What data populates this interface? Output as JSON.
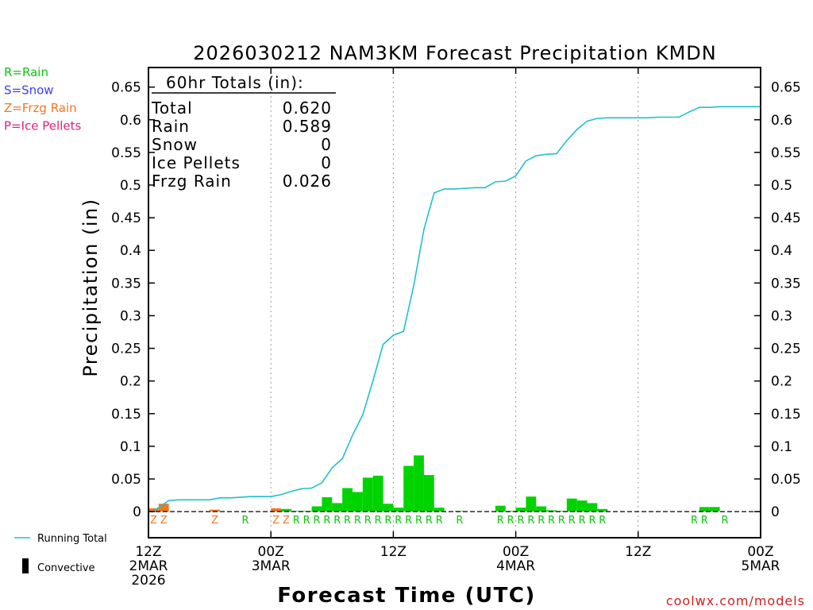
{
  "chart_data": {
    "type": "bar",
    "title": "2026030212 NAM3KM Forecast Precipitation KMDN",
    "xlabel": "Forecast Time (UTC)",
    "ylabel": "Precipitation (in)",
    "ylim": [
      -0.04,
      0.68
    ],
    "xlim": [
      0,
      60
    ],
    "yticks": [
      0,
      0.05,
      0.1,
      0.15,
      0.2,
      0.25,
      0.3,
      0.35,
      0.4,
      0.45,
      0.5,
      0.55,
      0.6,
      0.65
    ],
    "ytick_labels": [
      "0",
      "0.05",
      "0.1",
      "0.15",
      "0.2",
      "0.25",
      "0.3",
      "0.35",
      "0.4",
      "0.45",
      "0.5",
      "0.55",
      "0.6",
      "0.65"
    ],
    "xticks": [
      {
        "hour": 0,
        "lines": [
          "12Z",
          "2MAR",
          "2026"
        ]
      },
      {
        "hour": 12,
        "lines": [
          "00Z",
          "3MAR"
        ]
      },
      {
        "hour": 24,
        "lines": [
          "12Z"
        ]
      },
      {
        "hour": 36,
        "lines": [
          "00Z",
          "4MAR"
        ]
      },
      {
        "hour": 48,
        "lines": [
          "12Z"
        ]
      },
      {
        "hour": 60,
        "lines": [
          "00Z",
          "5MAR"
        ]
      }
    ],
    "colors": {
      "rain": "#00d400",
      "frzg": "#f07820",
      "snow": "#3c3cff",
      "ice": "#e0207a",
      "running": "#20c0c8"
    },
    "legend": [
      {
        "text": "R=Rain",
        "color": "#10c410"
      },
      {
        "text": "S=Snow",
        "color": "#3c3cff"
      },
      {
        "text": "Z=Frzg Rain",
        "color": "#f07820"
      },
      {
        "text": "P=Ice Pellets",
        "color": "#e0207a"
      }
    ],
    "bottom_legend": {
      "running": "Running Total",
      "convective": "Convective"
    },
    "totals": {
      "header": "60hr Totals (in):",
      "rows": [
        {
          "label": "Total",
          "value": "0.620"
        },
        {
          "label": "Rain",
          "value": "0.589"
        },
        {
          "label": "Snow",
          "value": "0"
        },
        {
          "label": "Ice Pellets",
          "value": "0"
        },
        {
          "label": "Frzg Rain",
          "value": "0.026"
        }
      ]
    },
    "bars": [
      {
        "hour": 1,
        "value": 0.005,
        "type": "frzg"
      },
      {
        "hour": 2,
        "value": 0.012,
        "type": "frzg"
      },
      {
        "hour": 7,
        "value": 0.003,
        "type": "frzg"
      },
      {
        "hour": 13,
        "value": 0.005,
        "type": "frzg"
      },
      {
        "hour": 14,
        "value": 0.004,
        "type": "rain"
      },
      {
        "hour": 15,
        "value": 0.001,
        "type": "rain"
      },
      {
        "hour": 16,
        "value": 0.001,
        "type": "rain"
      },
      {
        "hour": 17,
        "value": 0.008,
        "type": "rain"
      },
      {
        "hour": 18,
        "value": 0.022,
        "type": "rain"
      },
      {
        "hour": 19,
        "value": 0.013,
        "type": "rain"
      },
      {
        "hour": 20,
        "value": 0.036,
        "type": "rain"
      },
      {
        "hour": 21,
        "value": 0.03,
        "type": "rain"
      },
      {
        "hour": 22,
        "value": 0.052,
        "type": "rain"
      },
      {
        "hour": 23,
        "value": 0.055,
        "type": "rain"
      },
      {
        "hour": 24,
        "value": 0.012,
        "type": "rain"
      },
      {
        "hour": 25,
        "value": 0.006,
        "type": "rain"
      },
      {
        "hour": 26,
        "value": 0.07,
        "type": "rain"
      },
      {
        "hour": 27,
        "value": 0.086,
        "type": "rain"
      },
      {
        "hour": 28,
        "value": 0.056,
        "type": "rain"
      },
      {
        "hour": 29,
        "value": 0.006,
        "type": "rain"
      },
      {
        "hour": 31,
        "value": 0.001,
        "type": "rain"
      },
      {
        "hour": 35,
        "value": 0.009,
        "type": "rain"
      },
      {
        "hour": 36,
        "value": 0.001,
        "type": "rain"
      },
      {
        "hour": 37,
        "value": 0.006,
        "type": "rain"
      },
      {
        "hour": 38,
        "value": 0.023,
        "type": "rain"
      },
      {
        "hour": 39,
        "value": 0.008,
        "type": "rain"
      },
      {
        "hour": 40,
        "value": 0.002,
        "type": "rain"
      },
      {
        "hour": 41,
        "value": 0.001,
        "type": "rain"
      },
      {
        "hour": 42,
        "value": 0.02,
        "type": "rain"
      },
      {
        "hour": 43,
        "value": 0.017,
        "type": "rain"
      },
      {
        "hour": 44,
        "value": 0.013,
        "type": "rain"
      },
      {
        "hour": 45,
        "value": 0.004,
        "type": "rain"
      },
      {
        "hour": 55,
        "value": 0.007,
        "type": "rain"
      },
      {
        "hour": 56,
        "value": 0.007,
        "type": "rain"
      }
    ],
    "type_labels": [
      {
        "hour": 1,
        "text": "Z",
        "type": "frzg"
      },
      {
        "hour": 2,
        "text": "Z",
        "type": "frzg"
      },
      {
        "hour": 7,
        "text": "Z",
        "type": "frzg"
      },
      {
        "hour": 10,
        "text": "R",
        "type": "rain"
      },
      {
        "hour": 13,
        "text": "Z",
        "type": "frzg"
      },
      {
        "hour": 14,
        "text": "Z",
        "type": "frzg"
      },
      {
        "hour": 15,
        "text": "R",
        "type": "rain"
      },
      {
        "hour": 16,
        "text": "R",
        "type": "rain"
      },
      {
        "hour": 17,
        "text": "R",
        "type": "rain"
      },
      {
        "hour": 18,
        "text": "R",
        "type": "rain"
      },
      {
        "hour": 19,
        "text": "R",
        "type": "rain"
      },
      {
        "hour": 20,
        "text": "R",
        "type": "rain"
      },
      {
        "hour": 21,
        "text": "R",
        "type": "rain"
      },
      {
        "hour": 22,
        "text": "R",
        "type": "rain"
      },
      {
        "hour": 23,
        "text": "R",
        "type": "rain"
      },
      {
        "hour": 24,
        "text": "R",
        "type": "rain"
      },
      {
        "hour": 25,
        "text": "R",
        "type": "rain"
      },
      {
        "hour": 26,
        "text": "R",
        "type": "rain"
      },
      {
        "hour": 27,
        "text": "R",
        "type": "rain"
      },
      {
        "hour": 28,
        "text": "R",
        "type": "rain"
      },
      {
        "hour": 29,
        "text": "R",
        "type": "rain"
      },
      {
        "hour": 31,
        "text": "R",
        "type": "rain"
      },
      {
        "hour": 35,
        "text": "R",
        "type": "rain"
      },
      {
        "hour": 36,
        "text": "R",
        "type": "rain"
      },
      {
        "hour": 37,
        "text": "R",
        "type": "rain"
      },
      {
        "hour": 38,
        "text": "R",
        "type": "rain"
      },
      {
        "hour": 39,
        "text": "R",
        "type": "rain"
      },
      {
        "hour": 40,
        "text": "R",
        "type": "rain"
      },
      {
        "hour": 41,
        "text": "R",
        "type": "rain"
      },
      {
        "hour": 42,
        "text": "R",
        "type": "rain"
      },
      {
        "hour": 43,
        "text": "R",
        "type": "rain"
      },
      {
        "hour": 44,
        "text": "R",
        "type": "rain"
      },
      {
        "hour": 45,
        "text": "R",
        "type": "rain"
      },
      {
        "hour": 54,
        "text": "R",
        "type": "rain"
      },
      {
        "hour": 55,
        "text": "R",
        "type": "rain"
      },
      {
        "hour": 57,
        "text": "R",
        "type": "rain"
      }
    ],
    "running_total": {
      "name": "Running Total",
      "x": [
        0.5,
        1,
        2,
        3,
        4,
        5,
        6,
        7,
        8,
        9,
        10,
        11,
        12,
        13,
        14,
        15,
        16,
        17,
        18,
        19,
        20,
        21,
        22,
        23,
        24,
        25,
        26,
        27,
        28,
        29,
        30,
        31,
        32,
        33,
        34,
        35,
        36,
        37,
        38,
        39,
        40,
        41,
        42,
        43,
        44,
        45,
        46,
        47,
        48,
        49,
        50,
        51,
        52,
        53,
        54,
        55,
        56,
        57,
        58,
        59,
        60
      ],
      "y": [
        0.002,
        0.006,
        0.017,
        0.018,
        0.018,
        0.018,
        0.018,
        0.021,
        0.021,
        0.022,
        0.023,
        0.023,
        0.023,
        0.026,
        0.031,
        0.035,
        0.036,
        0.044,
        0.067,
        0.081,
        0.117,
        0.148,
        0.2,
        0.256,
        0.27,
        0.276,
        0.346,
        0.432,
        0.488,
        0.494,
        0.494,
        0.495,
        0.496,
        0.496,
        0.505,
        0.506,
        0.514,
        0.537,
        0.545,
        0.547,
        0.548,
        0.568,
        0.585,
        0.598,
        0.602,
        0.603,
        0.603,
        0.603,
        0.603,
        0.603,
        0.604,
        0.604,
        0.604,
        0.612,
        0.619,
        0.619,
        0.62,
        0.62,
        0.62,
        0.62,
        0.62
      ]
    }
  },
  "footer": {
    "credit": "coolwx.com/models"
  }
}
